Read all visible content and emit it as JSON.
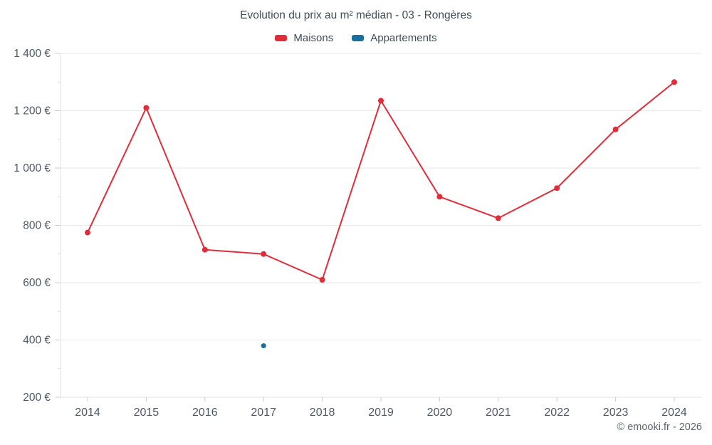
{
  "chart_data": {
    "type": "line",
    "title": "Evolution du prix au m² médian - 03 - Rongères",
    "footer": "© emooki.fr - 2026",
    "categories": [
      "2014",
      "2015",
      "2016",
      "2017",
      "2018",
      "2019",
      "2020",
      "2021",
      "2022",
      "2023",
      "2024"
    ],
    "series": [
      {
        "name": "Maisons",
        "color": "#e12d39",
        "x": [
          "2014",
          "2015",
          "2016",
          "2017",
          "2018",
          "2019",
          "2020",
          "2021",
          "2022",
          "2023",
          "2024"
        ],
        "values": [
          775,
          1210,
          715,
          700,
          610,
          1235,
          900,
          825,
          930,
          1135,
          1300
        ]
      },
      {
        "name": "Appartements",
        "color": "#1a6f9c",
        "x": [
          "2017"
        ],
        "values": [
          380
        ]
      }
    ],
    "ylim": [
      200,
      1400
    ],
    "ytick_step": 200,
    "yticklabels": [
      "200 €",
      "400 €",
      "600 €",
      "800 €",
      "1 000 €",
      "1 200 €",
      "1 400 €"
    ],
    "grid": "horizontal",
    "legend_position": "top",
    "text_color": "#4d5a66",
    "grid_color": "#e9e9e9",
    "axis_color": "#dde1e4",
    "tick_color": "#c9ced3"
  }
}
